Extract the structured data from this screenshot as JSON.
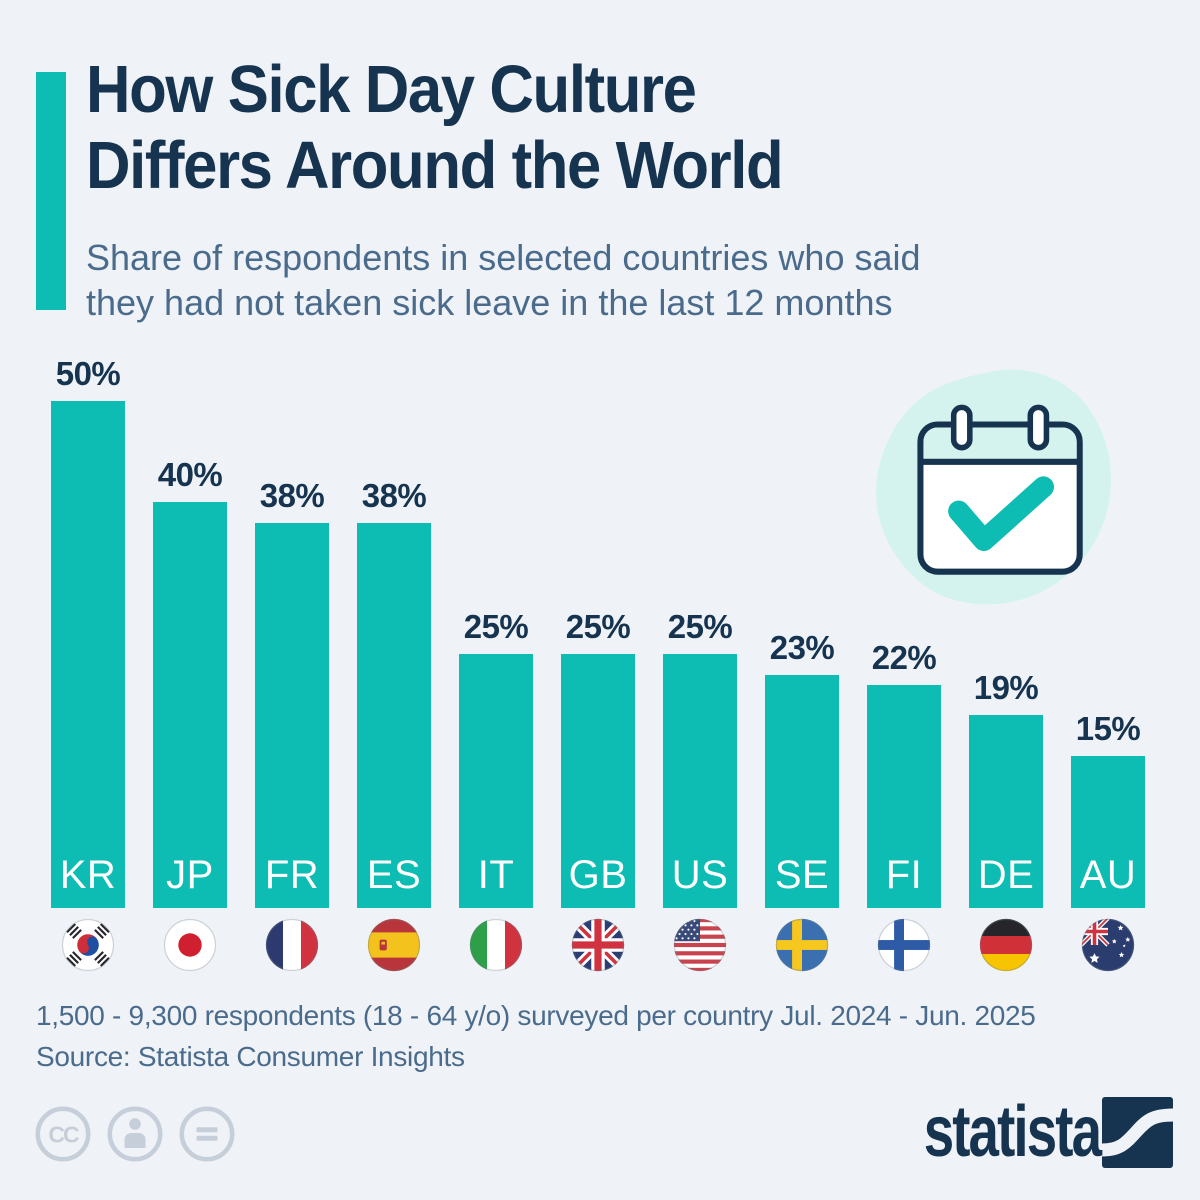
{
  "header": {
    "title_lines": [
      "How Sick Day Culture",
      "Differs Around the World"
    ],
    "subtitle_lines": [
      "Share of respondents in selected countries who said",
      "they had not taken sick leave in the last 12 months"
    ]
  },
  "chart_data": {
    "type": "bar",
    "title": "How Sick Day Culture Differs Around the World",
    "subtitle": "Share of respondents in selected countries who said they had not taken sick leave in the last 12 months",
    "categories": [
      "KR",
      "JP",
      "FR",
      "ES",
      "IT",
      "GB",
      "US",
      "SE",
      "FI",
      "DE",
      "AU"
    ],
    "values": [
      50,
      40,
      38,
      38,
      25,
      25,
      25,
      23,
      22,
      19,
      15
    ],
    "value_suffix": "%",
    "ylim": [
      0,
      50
    ],
    "grid": false,
    "legend": false,
    "bar_color": "#0dbcb2",
    "flags": [
      "flag-kr-icon",
      "flag-jp-icon",
      "flag-fr-icon",
      "flag-es-icon",
      "flag-it-icon",
      "flag-gb-icon",
      "flag-us-icon",
      "flag-se-icon",
      "flag-fi-icon",
      "flag-de-icon",
      "flag-au-icon"
    ]
  },
  "decor": {
    "icon": "calendar-check-icon"
  },
  "footer": {
    "note": "1,500 - 9,300 respondents (18 - 64 y/o) surveyed per country Jul. 2024 - Jun. 2025",
    "source": "Source: Statista Consumer Insights",
    "license_icons": [
      "cc-icon",
      "cc-by-icon",
      "cc-nd-icon"
    ],
    "brand_wordmark": "statista"
  },
  "colors": {
    "background": "#eff3f7",
    "navy": "#16334f",
    "teal": "#0dbcb2",
    "mint": "#d5f3ee",
    "text_secondary": "#4b6b8c",
    "cc_gray": "#c6cfd9"
  }
}
